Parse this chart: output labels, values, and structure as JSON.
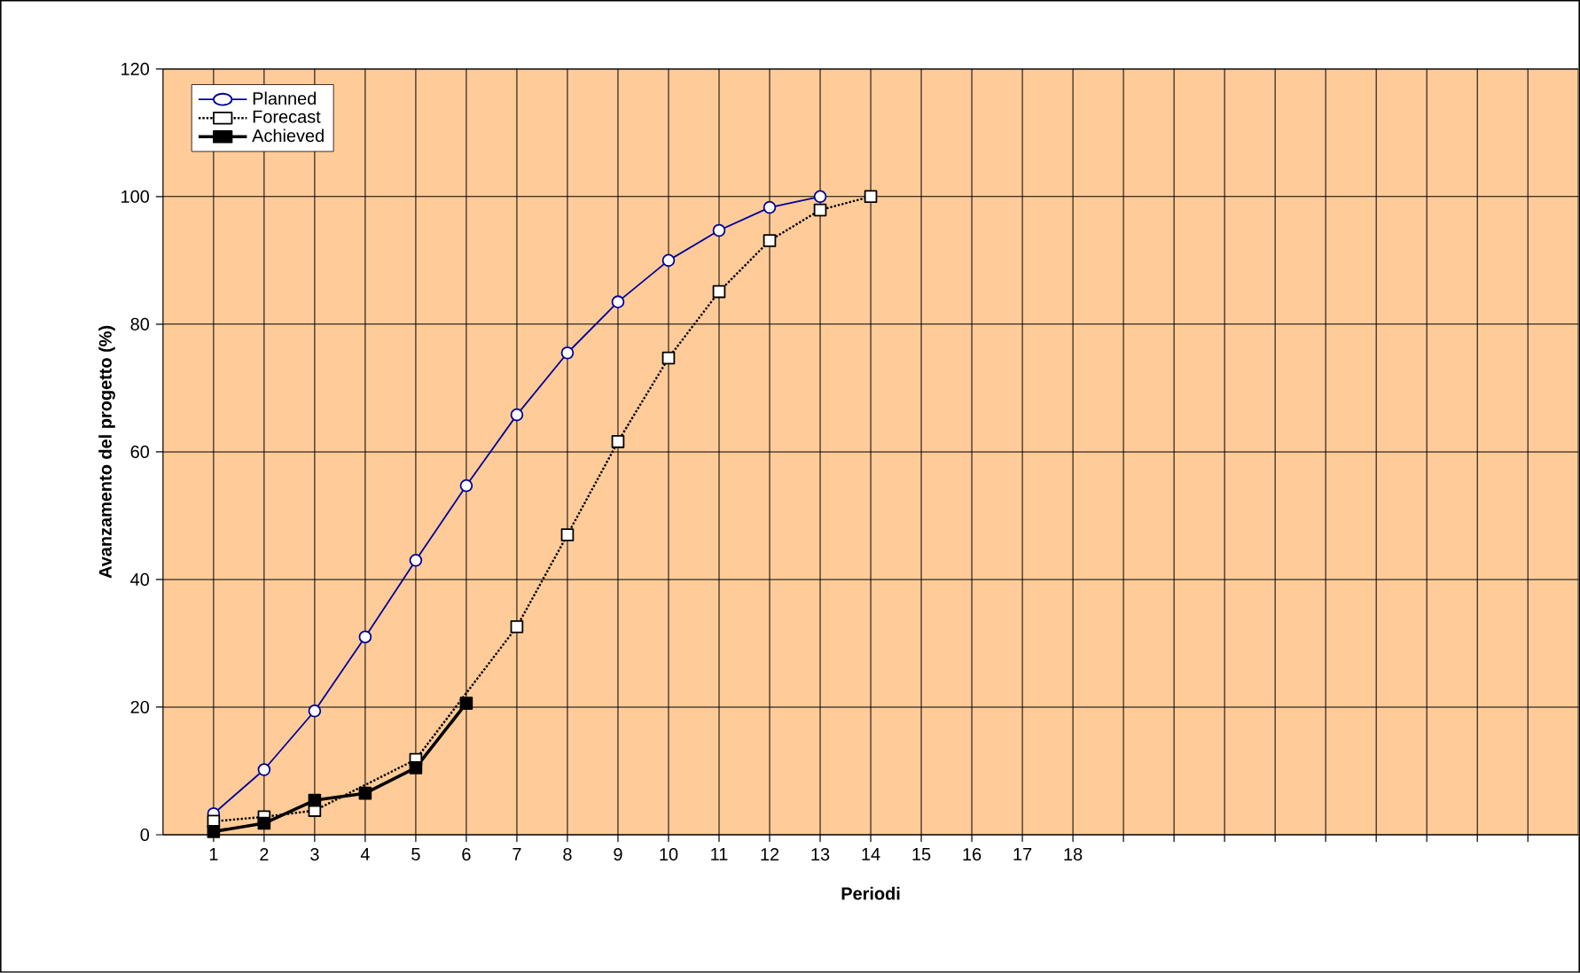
{
  "chart_data": {
    "type": "line",
    "xlabel": "Periodi",
    "ylabel": "Avanzamento del progetto (%)",
    "categories": [
      "1",
      "2",
      "3",
      "4",
      "5",
      "6",
      "7",
      "8",
      "9",
      "10",
      "11",
      "12",
      "13",
      "14",
      "15",
      "16",
      "17",
      "18",
      null,
      null,
      null,
      null,
      null,
      null,
      null,
      null,
      null
    ],
    "series": [
      {
        "name": "Planned",
        "color": "#000099",
        "marker": "circle",
        "line_style": "solid",
        "values": [
          3.3,
          10.2,
          19.4,
          31.0,
          43.0,
          54.7,
          65.8,
          75.5,
          83.5,
          90.0,
          94.7,
          98.3,
          100,
          null,
          null,
          null,
          null,
          null,
          null,
          null,
          null,
          null,
          null,
          null,
          null,
          null,
          null
        ]
      },
      {
        "name": "Forecast",
        "color": "#000000",
        "marker": "square",
        "line_style": "dotted",
        "values": [
          2.1,
          2.8,
          3.8,
          null,
          11.8,
          null,
          32.6,
          47.0,
          61.6,
          74.7,
          85.1,
          93.1,
          97.9,
          100,
          null,
          null,
          null,
          null,
          null,
          null,
          null,
          null,
          null,
          null,
          null,
          null,
          null
        ]
      },
      {
        "name": "Achieved",
        "color": "#000000",
        "marker": "square",
        "line_style": "solid",
        "values": [
          0.5,
          1.8,
          5.4,
          6.5,
          10.5,
          20.6,
          null,
          null,
          null,
          null,
          null,
          null,
          null,
          null,
          null,
          null,
          null,
          null,
          null,
          null,
          null,
          null,
          null,
          null,
          null,
          null,
          null
        ]
      }
    ],
    "ylim": [
      0,
      120
    ],
    "yticks": [
      0,
      20,
      40,
      60,
      80,
      100,
      120
    ],
    "grid": true,
    "legend": "top left"
  }
}
